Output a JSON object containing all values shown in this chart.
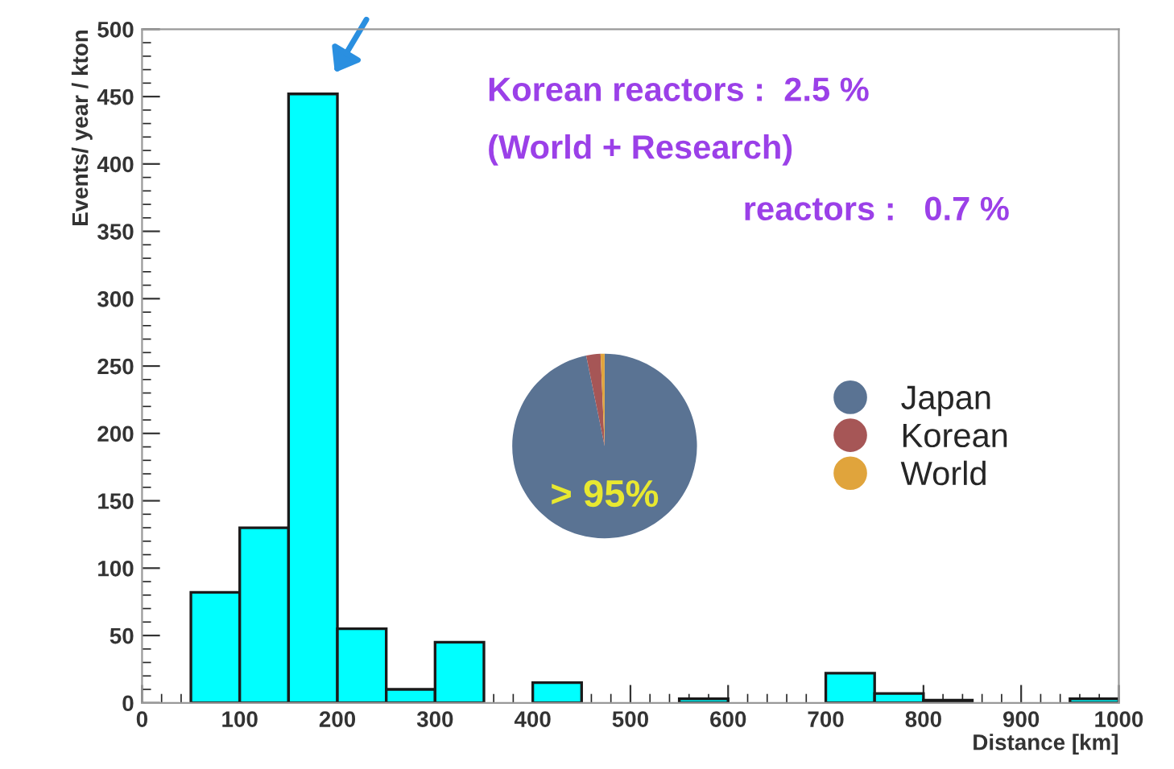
{
  "chart_data": [
    {
      "type": "histogram",
      "xlabel": "Distance [km]",
      "ylabel": "Events/ year / kton",
      "color": "#00ffff",
      "bins": [
        0,
        50,
        100,
        150,
        200,
        250,
        300,
        350,
        400,
        450,
        500,
        550,
        600,
        650,
        700,
        750,
        800,
        850,
        900,
        950,
        1000
      ],
      "values": [
        0,
        82,
        130,
        452,
        55,
        10,
        45,
        0,
        15,
        0,
        0,
        3,
        0,
        0,
        22,
        7,
        2,
        0,
        0,
        3
      ],
      "xlim": [
        0,
        1000
      ],
      "xticks": [
        0,
        100,
        200,
        300,
        400,
        500,
        600,
        700,
        800,
        900,
        1000
      ],
      "ylim": [
        0,
        500
      ],
      "yticks": [
        0,
        50,
        100,
        150,
        200,
        250,
        300,
        350,
        400,
        450,
        500
      ],
      "grid": false
    },
    {
      "type": "pie",
      "categories": [
        "Japan",
        "Korean",
        "World"
      ],
      "values": [
        96.8,
        2.5,
        0.7
      ],
      "colors": [
        "#5a7393",
        "#a65656",
        "#e0a43c"
      ],
      "value_labels": [
        "> 95%",
        null,
        null
      ],
      "legend": "right",
      "annotations": [
        "Korean reactors :  2.5 %",
        "(World + Research)",
        "reactors :   0.7 %"
      ]
    }
  ]
}
